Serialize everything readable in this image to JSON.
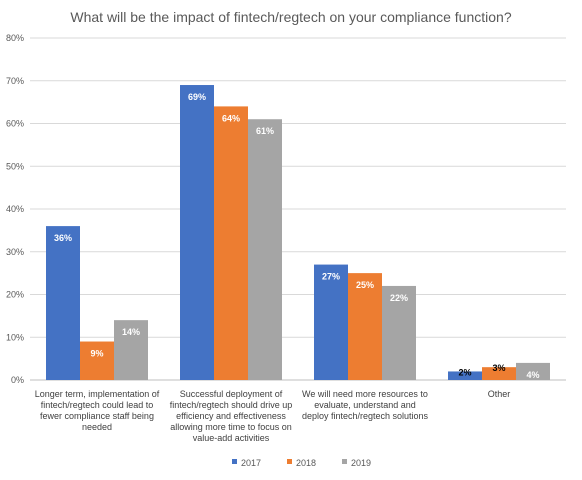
{
  "chart_data": {
    "type": "bar",
    "title": "What will be the impact of fintech/regtech on your compliance function?",
    "categories": [
      [
        "Longer term, implementation of",
        "fintech/regtech could lead to",
        "fewer compliance staff being",
        "needed"
      ],
      [
        "Successful deployment of",
        "fintech/regtech should drive up",
        "efficiency and effectiveness",
        "allowing more time to focus on",
        "value-add activities"
      ],
      [
        "We will need more resources to",
        "evaluate, understand and",
        "deploy fintech/regtech solutions"
      ],
      [
        "Other"
      ]
    ],
    "series": [
      {
        "name": "2017",
        "color": "#4472C4",
        "values": [
          36,
          69,
          27,
          2
        ],
        "labels": [
          "36%",
          "69%",
          "27%",
          "2%"
        ]
      },
      {
        "name": "2018",
        "color": "#ED7D31",
        "values": [
          9,
          64,
          25,
          3
        ],
        "labels": [
          "9%",
          "64%",
          "25%",
          "3%"
        ]
      },
      {
        "name": "2019",
        "color": "#A5A5A5",
        "values": [
          14,
          61,
          22,
          4
        ],
        "labels": [
          "14%",
          "61%",
          "22%",
          "4%"
        ]
      }
    ],
    "yticks": [
      "0%",
      "10%",
      "20%",
      "30%",
      "40%",
      "50%",
      "60%",
      "70%",
      "80%"
    ],
    "ylim": [
      0,
      80
    ],
    "grid": true,
    "legend_position": "bottom"
  }
}
